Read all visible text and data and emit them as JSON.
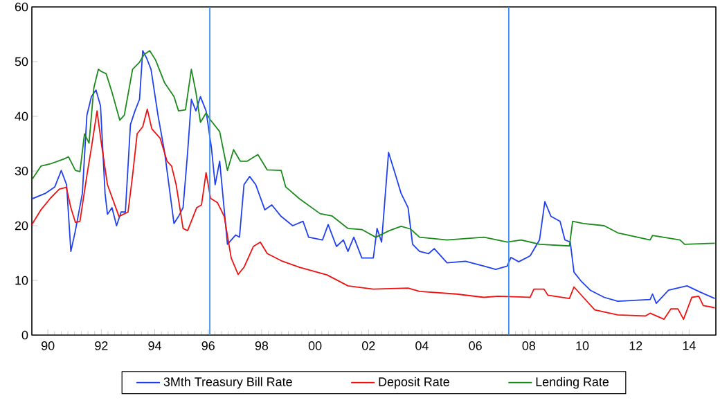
{
  "chart_data": {
    "type": "line",
    "xlim": [
      1989.4,
      2015.0
    ],
    "xticks": [
      {
        "value": 1990,
        "label": "90"
      },
      {
        "value": 1992,
        "label": "92"
      },
      {
        "value": 1994,
        "label": "94"
      },
      {
        "value": 1996,
        "label": "96"
      },
      {
        "value": 1998,
        "label": "98"
      },
      {
        "value": 2000,
        "label": "00"
      },
      {
        "value": 2002,
        "label": "02"
      },
      {
        "value": 2004,
        "label": "04"
      },
      {
        "value": 2006,
        "label": "06"
      },
      {
        "value": 2008,
        "label": "08"
      },
      {
        "value": 2010,
        "label": "10"
      },
      {
        "value": 2012,
        "label": "12"
      },
      {
        "value": 2014,
        "label": "14"
      }
    ],
    "ylim": [
      0,
      60
    ],
    "yticks": [
      0,
      10,
      20,
      30,
      40,
      50,
      60
    ],
    "grid": false,
    "legend": "bottom",
    "ref_lines": [
      {
        "axis": "x",
        "value": 1996.06,
        "color": "#3a8ff0"
      },
      {
        "axis": "x",
        "value": 2007.25,
        "color": "#3a8ff0"
      }
    ],
    "series": [
      {
        "name": "3Mth Treasury Bill Rate",
        "color": "#1f3ff0",
        "x": [
          1989.4,
          1989.9,
          1990.26,
          1990.5,
          1990.7,
          1990.86,
          1991.03,
          1991.29,
          1991.46,
          1991.63,
          1991.8,
          1991.97,
          1992.14,
          1992.23,
          1992.4,
          1992.57,
          1992.74,
          1992.9,
          1993.09,
          1993.26,
          1993.43,
          1993.55,
          1993.69,
          1993.86,
          1994.12,
          1994.37,
          1994.72,
          1994.89,
          1995.06,
          1995.23,
          1995.37,
          1995.54,
          1995.71,
          1995.92,
          1996.12,
          1996.26,
          1996.43,
          1996.72,
          1997.03,
          1997.17,
          1997.34,
          1997.55,
          1997.78,
          1998.12,
          1998.38,
          1998.73,
          1999.16,
          1999.55,
          1999.76,
          2000.28,
          2000.49,
          2000.8,
          2001.06,
          2001.23,
          2001.45,
          2001.75,
          2002.18,
          2002.32,
          2002.49,
          2002.75,
          2002.96,
          2003.22,
          2003.48,
          2003.65,
          2003.91,
          2004.25,
          2004.46,
          2004.94,
          2005.63,
          2006.32,
          2006.76,
          2007.19,
          2007.33,
          2007.62,
          2008.05,
          2008.4,
          2008.6,
          2008.83,
          2009.17,
          2009.35,
          2009.55,
          2009.69,
          2009.95,
          2010.3,
          2010.82,
          2011.33,
          2012.54,
          2012.63,
          2012.77,
          2013.23,
          2013.92,
          2014.44,
          2014.96
        ],
        "values": [
          24.9,
          25.9,
          27.1,
          30.1,
          27.5,
          15.3,
          19.1,
          25.9,
          40.2,
          43.6,
          44.8,
          41.9,
          25.9,
          22.1,
          23.3,
          20.0,
          22.5,
          22.5,
          38.5,
          41.0,
          43.1,
          52.0,
          50.7,
          48.6,
          40.2,
          33.4,
          20.4,
          21.7,
          23.3,
          33.4,
          43.1,
          41.0,
          43.6,
          41.0,
          34.3,
          27.5,
          31.8,
          16.6,
          18.3,
          17.9,
          27.5,
          29.0,
          27.5,
          22.9,
          23.8,
          21.7,
          20.0,
          20.8,
          17.9,
          17.4,
          20.2,
          16.2,
          17.4,
          15.3,
          17.9,
          14.1,
          14.1,
          19.5,
          17.0,
          33.4,
          30.1,
          25.9,
          23.3,
          16.6,
          15.3,
          14.9,
          15.8,
          13.2,
          13.5,
          12.6,
          12.0,
          12.6,
          14.2,
          13.4,
          14.5,
          17.4,
          24.4,
          21.7,
          20.8,
          17.4,
          17.0,
          11.5,
          9.9,
          8.2,
          6.9,
          6.2,
          6.5,
          7.5,
          5.8,
          8.2,
          9.0,
          7.8,
          6.7
        ]
      },
      {
        "name": "Deposit Rate",
        "color": "#f01010",
        "x": [
          1989.4,
          1989.74,
          1990.09,
          1990.43,
          1990.69,
          1990.86,
          1991.03,
          1991.2,
          1991.46,
          1991.63,
          1991.84,
          1992.0,
          1992.23,
          1992.66,
          1993.0,
          1993.17,
          1993.34,
          1993.55,
          1993.72,
          1993.89,
          1994.2,
          1994.46,
          1994.63,
          1994.8,
          1995.06,
          1995.23,
          1995.57,
          1995.75,
          1995.92,
          1996.09,
          1996.35,
          1996.6,
          1996.86,
          1997.12,
          1997.34,
          1997.69,
          1997.95,
          1998.21,
          1998.73,
          1999.42,
          2000.45,
          2001.23,
          2002.18,
          2003.48,
          2003.91,
          2005.29,
          2006.32,
          2006.84,
          2008.05,
          2008.19,
          2008.57,
          2008.71,
          2009.52,
          2009.69,
          2010.04,
          2010.47,
          2011.33,
          2012.37,
          2012.54,
          2013.06,
          2013.32,
          2013.58,
          2013.79,
          2014.1,
          2014.36,
          2014.53,
          2014.96
        ],
        "values": [
          20.2,
          22.9,
          25.0,
          26.7,
          27.0,
          23.3,
          20.6,
          20.8,
          29.2,
          34.3,
          41.0,
          35.1,
          27.5,
          21.7,
          22.5,
          29.2,
          36.8,
          38.1,
          41.3,
          37.7,
          36.0,
          31.8,
          30.9,
          27.5,
          19.5,
          19.1,
          23.3,
          23.8,
          29.7,
          25.0,
          24.2,
          21.7,
          14.1,
          11.1,
          12.4,
          16.2,
          17.0,
          14.9,
          13.6,
          12.4,
          11.0,
          9.0,
          8.4,
          8.6,
          8.0,
          7.5,
          6.9,
          7.1,
          6.9,
          8.4,
          8.4,
          7.3,
          6.7,
          8.8,
          6.9,
          4.6,
          3.7,
          3.5,
          4.0,
          2.9,
          4.8,
          4.8,
          2.9,
          6.9,
          7.1,
          5.4,
          5.0
        ]
      },
      {
        "name": "Lending Rate",
        "color": "#1a8a1a",
        "x": [
          1989.4,
          1989.74,
          1990.09,
          1990.6,
          1990.77,
          1991.03,
          1991.2,
          1991.37,
          1991.54,
          1991.72,
          1991.89,
          1992.0,
          1992.18,
          1992.4,
          1992.69,
          1992.86,
          1993.17,
          1993.43,
          1993.6,
          1993.81,
          1994.03,
          1994.37,
          1994.72,
          1994.89,
          1995.15,
          1995.37,
          1995.54,
          1995.71,
          1995.92,
          1996.09,
          1996.43,
          1996.72,
          1996.95,
          1997.2,
          1997.46,
          1997.86,
          1998.21,
          1998.73,
          1998.9,
          1999.42,
          2000.19,
          2000.63,
          2001.23,
          2001.75,
          2002.27,
          2002.78,
          2003.22,
          2003.57,
          2003.91,
          2004.94,
          2006.32,
          2007.19,
          2007.71,
          2008.4,
          2009.52,
          2009.64,
          2010.04,
          2010.82,
          2011.33,
          2012.54,
          2012.63,
          2013.66,
          2013.83,
          2014.96
        ],
        "values": [
          28.4,
          30.9,
          31.3,
          32.2,
          32.6,
          30.1,
          29.9,
          36.8,
          35.1,
          45.2,
          48.6,
          48.2,
          47.8,
          44.4,
          39.3,
          40.2,
          48.6,
          49.9,
          51.3,
          52.0,
          50.3,
          46.1,
          43.6,
          41.0,
          41.2,
          48.6,
          44.4,
          38.9,
          40.6,
          39.3,
          37.2,
          30.1,
          33.9,
          31.8,
          31.8,
          33.0,
          30.2,
          30.1,
          27.1,
          24.9,
          22.2,
          21.8,
          19.5,
          19.3,
          17.9,
          19.1,
          19.9,
          19.4,
          17.9,
          17.4,
          17.9,
          17.0,
          17.4,
          16.6,
          16.3,
          20.8,
          20.4,
          20.0,
          18.7,
          17.4,
          18.2,
          17.4,
          16.6,
          16.8
        ]
      }
    ]
  }
}
